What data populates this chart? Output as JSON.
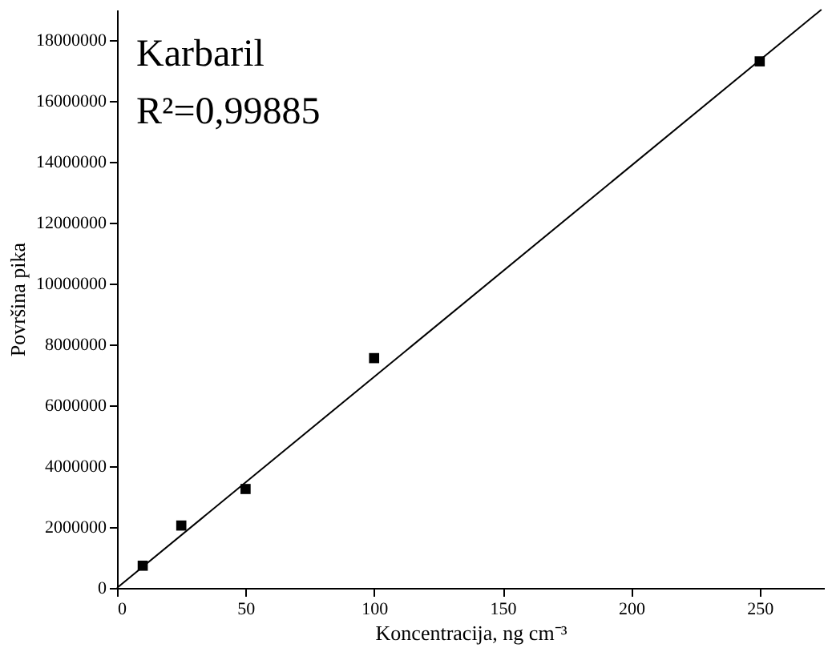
{
  "chart_data": {
    "type": "scatter",
    "xlabel": "Koncentracija, ng cm⁻³",
    "ylabel": "Površina pika",
    "annotations": [
      "Karbaril",
      "R²=0,99885"
    ],
    "series": [
      {
        "color": "#000000",
        "marker": "square",
        "x": [
          10,
          25,
          50,
          100,
          250
        ],
        "values": [
          730000,
          2050000,
          3250000,
          7550000,
          17300000
        ]
      },
      {
        "type": "line",
        "color": "#000000",
        "line_style": "solid",
        "x": [
          0,
          274
        ],
        "values": [
          0,
          19000000
        ]
      }
    ],
    "xlim": [
      0,
      275
    ],
    "xticks": [
      0,
      50,
      100,
      150,
      200,
      250
    ],
    "ylim": [
      0,
      19000000
    ],
    "yticks": [
      0,
      2000000,
      4000000,
      6000000,
      8000000,
      10000000,
      12000000,
      14000000,
      16000000,
      18000000
    ],
    "grid": false
  }
}
